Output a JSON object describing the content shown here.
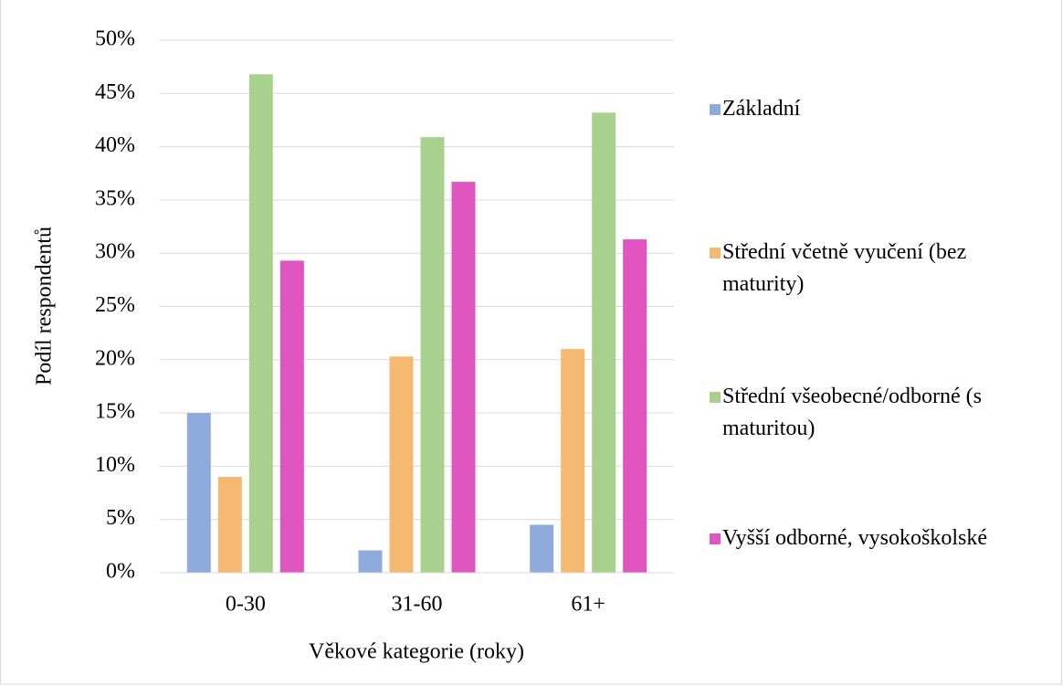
{
  "chart_data": {
    "type": "bar",
    "y_label": "Podíl respondentů",
    "x_label": "Věkové kategorie (roky)",
    "categories": [
      "0-30",
      "31-60",
      "61+"
    ],
    "series": [
      {
        "name": "Základní",
        "color": "#8faadc",
        "values": [
          15.0,
          2.1,
          4.5
        ]
      },
      {
        "name": "Střední včetně vyučení (bez maturity)",
        "color": "#f4b870",
        "values": [
          9.0,
          20.3,
          21.0
        ]
      },
      {
        "name": "Střední všeobecné/odborné (s maturitou)",
        "color": "#a9d18e",
        "values": [
          46.8,
          40.9,
          43.2
        ]
      },
      {
        "name": "Vyšší odborné, vysokoškolské",
        "color": "#e055bf",
        "values": [
          29.3,
          36.7,
          31.3
        ]
      }
    ],
    "ylim": [
      0,
      50
    ],
    "yticks": [
      {
        "value": 0,
        "label": "0%"
      },
      {
        "value": 5,
        "label": "5%"
      },
      {
        "value": 10,
        "label": "10%"
      },
      {
        "value": 15,
        "label": "15%"
      },
      {
        "value": 20,
        "label": "20%"
      },
      {
        "value": 25,
        "label": "25%"
      },
      {
        "value": 30,
        "label": "30%"
      },
      {
        "value": 35,
        "label": "35%"
      },
      {
        "value": 40,
        "label": "40%"
      },
      {
        "value": 45,
        "label": "45%"
      },
      {
        "value": 50,
        "label": "50%"
      }
    ],
    "grid": true,
    "legend": "right"
  }
}
